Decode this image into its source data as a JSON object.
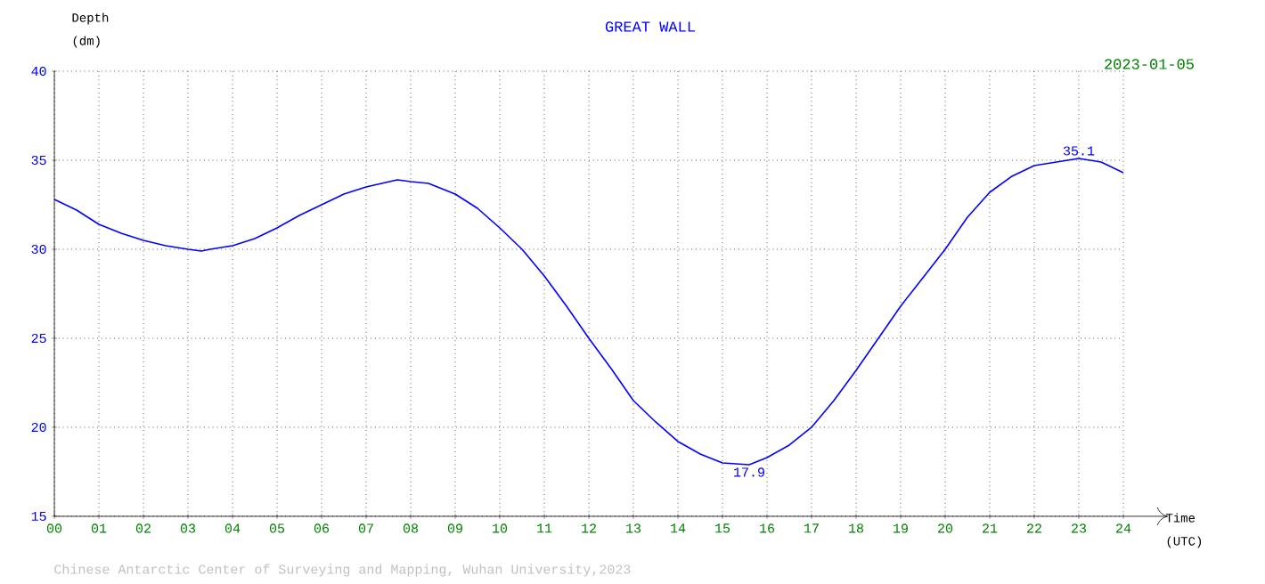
{
  "chart_data": {
    "type": "line",
    "title": "GREAT WALL",
    "subtitle": "2023-01-05",
    "xlabel": "Time (UTC)",
    "ylabel": "Depth (dm)",
    "x": [
      0,
      0.5,
      1,
      1.5,
      2,
      2.5,
      3,
      3.3,
      3.5,
      4,
      4.5,
      5,
      5.5,
      6,
      6.5,
      7,
      7.7,
      8,
      8.4,
      9,
      9.5,
      10,
      10.5,
      11,
      11.5,
      12,
      12.5,
      13,
      13.5,
      14,
      14.5,
      15,
      15.6,
      16,
      16.5,
      17,
      17.5,
      18,
      18.5,
      19,
      19.5,
      20,
      20.5,
      21,
      21.5,
      22,
      22.5,
      23,
      23.5,
      24
    ],
    "series": [
      {
        "color": "#0000ff",
        "values": [
          32.8,
          32.2,
          31.4,
          30.9,
          30.5,
          30.2,
          30.0,
          29.9,
          30.0,
          30.2,
          30.6,
          31.2,
          31.9,
          32.5,
          33.1,
          33.5,
          33.9,
          33.8,
          33.7,
          33.1,
          32.3,
          31.2,
          30.0,
          28.5,
          26.8,
          25.0,
          23.3,
          21.5,
          20.3,
          19.2,
          18.5,
          18.0,
          17.9,
          18.3,
          19.0,
          20.0,
          21.5,
          23.2,
          25.0,
          26.8,
          28.4,
          30.0,
          31.8,
          33.2,
          34.1,
          34.7,
          34.9,
          35.1,
          34.9,
          34.3
        ]
      }
    ],
    "xlim": [
      0,
      24
    ],
    "ylim": [
      15,
      40
    ],
    "xticks": [
      {
        "value": 0,
        "label": "00"
      },
      {
        "value": 1,
        "label": "01"
      },
      {
        "value": 2,
        "label": "02"
      },
      {
        "value": 3,
        "label": "03"
      },
      {
        "value": 4,
        "label": "04"
      },
      {
        "value": 5,
        "label": "05"
      },
      {
        "value": 6,
        "label": "06"
      },
      {
        "value": 7,
        "label": "07"
      },
      {
        "value": 8,
        "label": "08"
      },
      {
        "value": 9,
        "label": "09"
      },
      10,
      11,
      12,
      13,
      14,
      15,
      16,
      17,
      18,
      19,
      20,
      21,
      22,
      23,
      24
    ],
    "yticks": [
      15,
      20,
      25,
      30,
      35,
      40
    ],
    "grid": true,
    "line_style": "solid",
    "annotations": [
      {
        "text": "35.1",
        "x": 23,
        "y": 35.1
      },
      {
        "text": "17.9",
        "x": 15.6,
        "y": 17.9
      },
      "Chinese Antarctic Center of Surveying and Mapping, Wuhan University,2023"
    ]
  }
}
